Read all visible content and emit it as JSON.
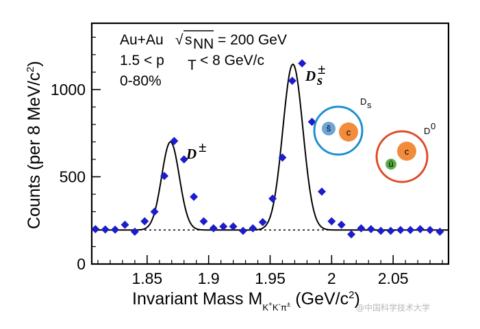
{
  "chart_data": {
    "type": "scatter",
    "title": "",
    "xlabel": {
      "main": "Invariant Mass M",
      "sub": "K",
      "sub_sup1": "+",
      "sub_mid": "K",
      "sub_sup2": "-",
      "sub_pi": "π",
      "sub_sup3": "±",
      "units": " (GeV/c",
      "units_sup": "2",
      "units_close": ")"
    },
    "ylabel": {
      "main": "Counts (per 8 MeV/c",
      "sup": "2",
      "close": ")"
    },
    "xlim": [
      1.805,
      2.095
    ],
    "ylim": [
      0,
      1380
    ],
    "xticks": [
      1.85,
      1.9,
      1.95,
      2.0,
      2.05
    ],
    "xtick_labels": [
      "1.85",
      "1.9",
      "1.95",
      "2",
      "2.05"
    ],
    "yticks": [
      0,
      500,
      1000
    ],
    "ytick_labels": [
      "0",
      "500",
      "1000"
    ],
    "series": [
      {
        "name": "data",
        "x": [
          1.808,
          1.816,
          1.824,
          1.832,
          1.84,
          1.848,
          1.856,
          1.864,
          1.872,
          1.88,
          1.888,
          1.896,
          1.904,
          1.912,
          1.92,
          1.928,
          1.936,
          1.944,
          1.952,
          1.96,
          1.968,
          1.976,
          1.984,
          1.992,
          2.0,
          2.008,
          2.016,
          2.024,
          2.032,
          2.04,
          2.048,
          2.056,
          2.064,
          2.072,
          2.08,
          2.088,
          2.096
        ],
        "y": [
          200,
          198,
          197,
          225,
          185,
          245,
          300,
          505,
          705,
          600,
          385,
          245,
          205,
          215,
          215,
          190,
          205,
          240,
          375,
          610,
          1050,
          1150,
          815,
          415,
          245,
          225,
          170,
          205,
          200,
          190,
          190,
          195,
          195,
          200,
          195,
          185,
          185
        ],
        "marker": "diamond",
        "color": "#1c1ccc"
      }
    ],
    "fit": {
      "background": 195,
      "peaks": [
        {
          "name": "D±",
          "mean": 1.869,
          "sigma": 0.0072,
          "amplitude": 505
        },
        {
          "name": "Ds±",
          "mean": 1.9685,
          "sigma": 0.0082,
          "amplitude": 950
        }
      ],
      "line_color": "#000000"
    },
    "background_line": {
      "y": 195,
      "style": "dotted"
    },
    "annotations": {
      "system": "Au+Au",
      "sqrt": "√",
      "snn_s": "s",
      "snn_sub": "NN",
      "energy": "= 200 GeV",
      "pt_prefix": "1.5 < p",
      "pt_sub": "T",
      "pt_suffix": "< 8 GeV/c",
      "centrality": "0-80%",
      "peak_d": "D",
      "peak_d_sup": "±",
      "peak_ds": "D",
      "peak_ds_sub": "s",
      "peak_ds_sup": "±"
    },
    "diagrams": {
      "ds": {
        "label": "D",
        "label_sub": "s",
        "antiquark": "s̄",
        "quark": "c",
        "ring_color": "#1c8fd0",
        "antiquark_color": "#6ca6d8",
        "quark_color": "#f28c3c"
      },
      "d0": {
        "label": "D",
        "label_sup": "0",
        "antiquark": "ū",
        "quark": "c",
        "ring_color": "#e04a26",
        "antiquark_color": "#5bad49",
        "quark_color": "#f28c3c"
      }
    }
  },
  "watermark": "@中国科学技术大学"
}
